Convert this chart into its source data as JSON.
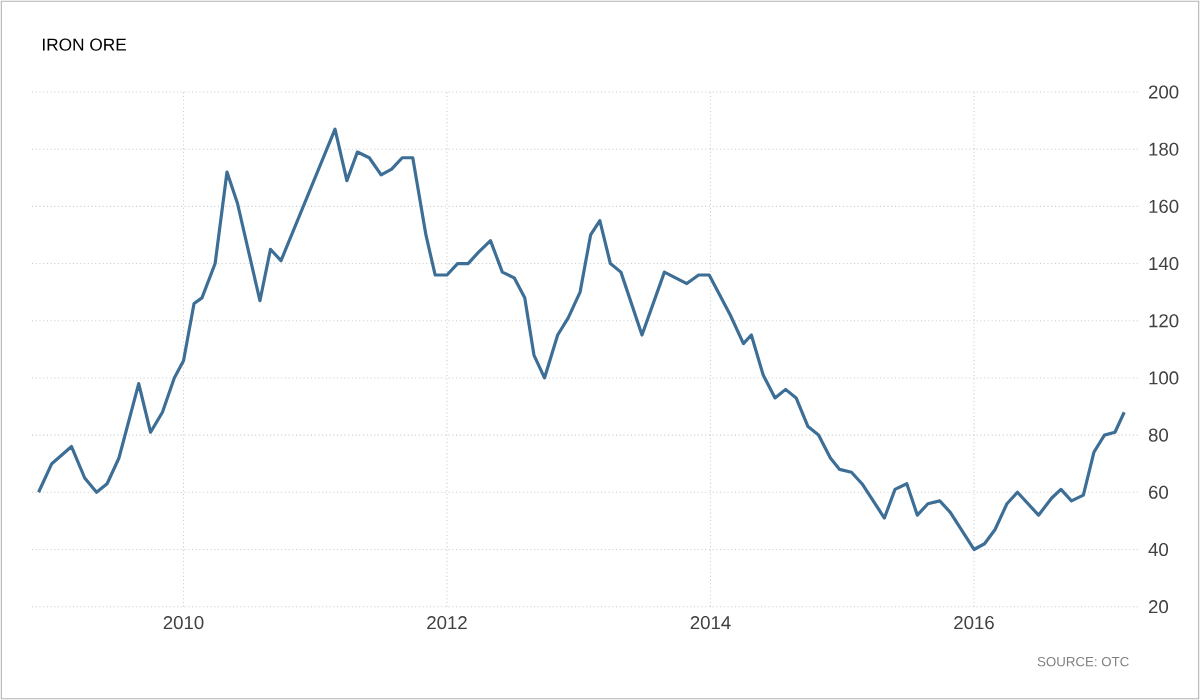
{
  "chart_data": {
    "type": "line",
    "title": "IRON ORE",
    "color": "#3d6e96",
    "x": [
      2008.9,
      2009.0,
      2009.15,
      2009.25,
      2009.34,
      2009.42,
      2009.51,
      2009.66,
      2009.75,
      2009.84,
      2009.93,
      2010.0,
      2010.08,
      2010.14,
      2010.24,
      2010.33,
      2010.41,
      2010.58,
      2010.66,
      2010.74,
      2011.15,
      2011.24,
      2011.32,
      2011.41,
      2011.5,
      2011.58,
      2011.66,
      2011.74,
      2011.84,
      2011.91,
      2012.0,
      2012.08,
      2012.16,
      2012.24,
      2012.33,
      2012.42,
      2012.51,
      2012.59,
      2012.66,
      2012.74,
      2012.84,
      2012.92,
      2013.01,
      2013.09,
      2013.16,
      2013.24,
      2013.32,
      2013.48,
      2013.65,
      2013.82,
      2013.91,
      2013.99,
      2014.15,
      2014.25,
      2014.31,
      2014.4,
      2014.49,
      2014.57,
      2014.65,
      2014.74,
      2014.82,
      2014.91,
      2014.98,
      2015.07,
      2015.15,
      2015.32,
      2015.4,
      2015.49,
      2015.57,
      2015.65,
      2015.74,
      2015.82,
      2016.0,
      2016.08,
      2016.16,
      2016.25,
      2016.33,
      2016.49,
      2016.59,
      2016.66,
      2016.74,
      2016.83,
      2016.91,
      2016.99,
      2017.07,
      2017.14
    ],
    "values": [
      60,
      70,
      76,
      65,
      60,
      63,
      72,
      98,
      81,
      88,
      100,
      106,
      126,
      128,
      140,
      172,
      161,
      127,
      145,
      141,
      187,
      169,
      179,
      177,
      171,
      173,
      177,
      177,
      150,
      136,
      136,
      140,
      140,
      144,
      148,
      137,
      135,
      128,
      108,
      100,
      115,
      121,
      130,
      150,
      155,
      140,
      137,
      115,
      137,
      133,
      136,
      136,
      122,
      112,
      115,
      101,
      93,
      96,
      93,
      83,
      80,
      72,
      68,
      67,
      63,
      51,
      61,
      63,
      52,
      56,
      57,
      53,
      40,
      42,
      47,
      56,
      60,
      52,
      58,
      61,
      57,
      59,
      74,
      80,
      81,
      88
    ],
    "xlim": [
      2008.85,
      2017.25
    ],
    "ylim": [
      20,
      200
    ],
    "xticks": [
      2010,
      2012,
      2014,
      2016
    ],
    "yticks": [
      20,
      40,
      60,
      80,
      100,
      120,
      140,
      160,
      180,
      200
    ],
    "grid": true,
    "annotations": [
      "SOURCE: OTC"
    ]
  }
}
